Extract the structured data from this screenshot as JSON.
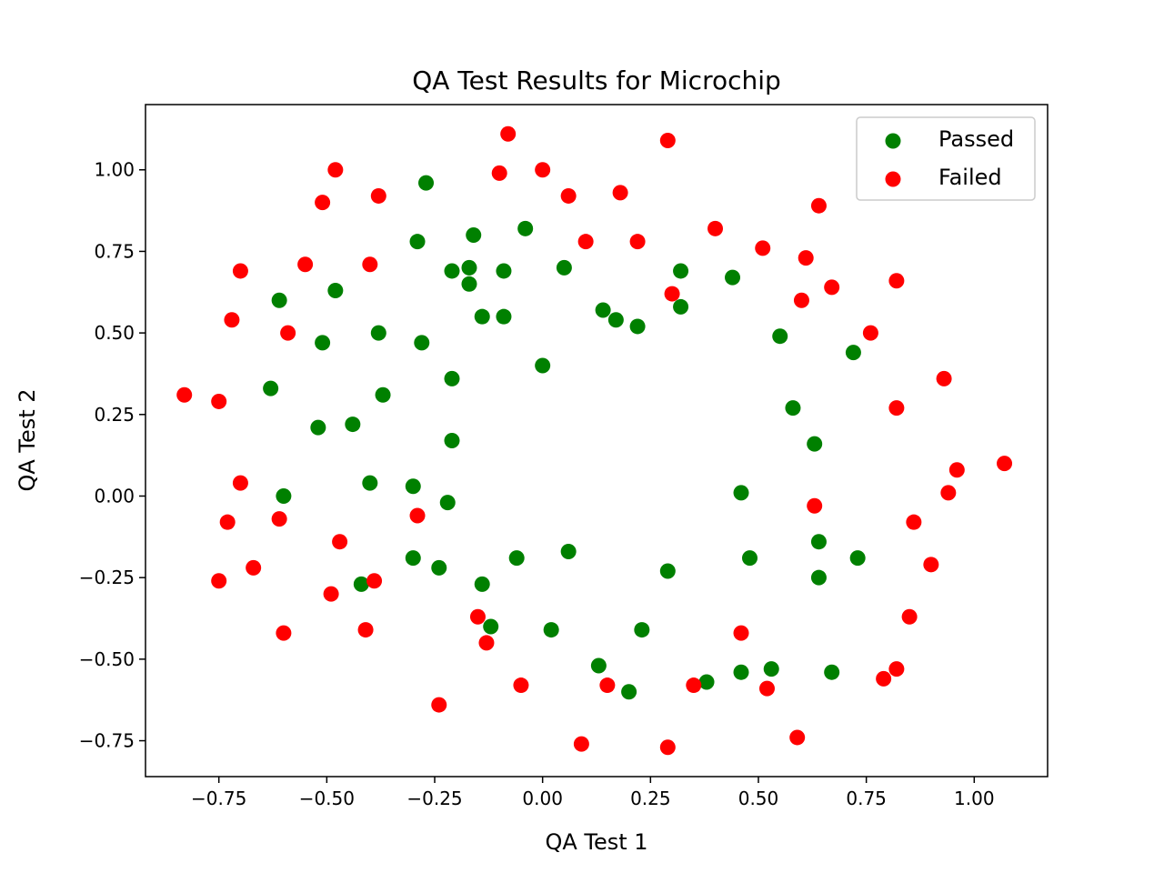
{
  "chart_data": {
    "type": "scatter",
    "title": "QA Test Results for Microchip",
    "xlabel": "QA Test 1",
    "ylabel": "QA Test 2",
    "xlim": [
      -0.92,
      1.17
    ],
    "ylim": [
      -0.86,
      1.2
    ],
    "xticks": [
      -0.75,
      -0.5,
      -0.25,
      0.0,
      0.25,
      0.5,
      0.75,
      1.0
    ],
    "xtick_labels": [
      "−0.75",
      "−0.50",
      "−0.25",
      "0.00",
      "0.25",
      "0.50",
      "0.75",
      "1.00"
    ],
    "yticks": [
      -0.75,
      -0.5,
      -0.25,
      0.0,
      0.25,
      0.5,
      0.75,
      1.0
    ],
    "ytick_labels": [
      "−0.75",
      "−0.50",
      "−0.25",
      "0.00",
      "0.25",
      "0.50",
      "0.75",
      "1.00"
    ],
    "grid": false,
    "legend_position": "top-right",
    "series": [
      {
        "name": "Passed",
        "color": "#008000",
        "points": [
          [
            -0.27,
            0.96
          ],
          [
            -0.04,
            0.82
          ],
          [
            -0.16,
            0.8
          ],
          [
            -0.29,
            0.78
          ],
          [
            -0.21,
            0.69
          ],
          [
            -0.17,
            0.7
          ],
          [
            -0.09,
            0.69
          ],
          [
            0.05,
            0.7
          ],
          [
            -0.17,
            0.65
          ],
          [
            -0.48,
            0.63
          ],
          [
            -0.61,
            0.6
          ],
          [
            -0.14,
            0.55
          ],
          [
            -0.09,
            0.55
          ],
          [
            0.14,
            0.57
          ],
          [
            0.17,
            0.54
          ],
          [
            0.22,
            0.52
          ],
          [
            0.32,
            0.69
          ],
          [
            0.32,
            0.58
          ],
          [
            0.44,
            0.67
          ],
          [
            0.55,
            0.49
          ],
          [
            0.72,
            0.44
          ],
          [
            -0.38,
            0.5
          ],
          [
            -0.51,
            0.47
          ],
          [
            -0.28,
            0.47
          ],
          [
            0.0,
            0.4
          ],
          [
            -0.21,
            0.36
          ],
          [
            -0.63,
            0.33
          ],
          [
            -0.37,
            0.31
          ],
          [
            0.58,
            0.27
          ],
          [
            -0.52,
            0.21
          ],
          [
            -0.44,
            0.22
          ],
          [
            -0.21,
            0.17
          ],
          [
            0.63,
            0.16
          ],
          [
            -0.6,
            0.0
          ],
          [
            -0.4,
            0.04
          ],
          [
            -0.3,
            0.03
          ],
          [
            -0.22,
            -0.02
          ],
          [
            0.46,
            0.01
          ],
          [
            -0.06,
            -0.19
          ],
          [
            0.06,
            -0.17
          ],
          [
            -0.3,
            -0.19
          ],
          [
            -0.24,
            -0.22
          ],
          [
            -0.14,
            -0.27
          ],
          [
            -0.42,
            -0.27
          ],
          [
            0.29,
            -0.23
          ],
          [
            0.48,
            -0.19
          ],
          [
            0.64,
            -0.14
          ],
          [
            0.73,
            -0.19
          ],
          [
            0.64,
            -0.25
          ],
          [
            -0.12,
            -0.4
          ],
          [
            0.02,
            -0.41
          ],
          [
            0.23,
            -0.41
          ],
          [
            0.13,
            -0.52
          ],
          [
            0.2,
            -0.6
          ],
          [
            0.38,
            -0.57
          ],
          [
            0.46,
            -0.54
          ],
          [
            0.53,
            -0.53
          ],
          [
            0.67,
            -0.54
          ]
        ]
      },
      {
        "name": "Failed",
        "color": "#ff0000",
        "points": [
          [
            -0.08,
            1.11
          ],
          [
            0.29,
            1.09
          ],
          [
            -0.48,
            1.0
          ],
          [
            -0.1,
            0.99
          ],
          [
            0.0,
            1.0
          ],
          [
            -0.38,
            0.92
          ],
          [
            -0.51,
            0.9
          ],
          [
            0.06,
            0.92
          ],
          [
            0.18,
            0.93
          ],
          [
            0.64,
            0.89
          ],
          [
            0.4,
            0.82
          ],
          [
            0.1,
            0.78
          ],
          [
            0.22,
            0.78
          ],
          [
            0.51,
            0.76
          ],
          [
            0.61,
            0.73
          ],
          [
            -0.55,
            0.71
          ],
          [
            -0.4,
            0.71
          ],
          [
            -0.7,
            0.69
          ],
          [
            0.82,
            0.66
          ],
          [
            0.67,
            0.64
          ],
          [
            0.3,
            0.62
          ],
          [
            0.6,
            0.6
          ],
          [
            -0.72,
            0.54
          ],
          [
            -0.59,
            0.5
          ],
          [
            0.76,
            0.5
          ],
          [
            0.93,
            0.36
          ],
          [
            -0.83,
            0.31
          ],
          [
            -0.75,
            0.29
          ],
          [
            0.82,
            0.27
          ],
          [
            1.07,
            0.1
          ],
          [
            0.96,
            0.08
          ],
          [
            -0.7,
            0.04
          ],
          [
            0.94,
            0.01
          ],
          [
            0.63,
            -0.03
          ],
          [
            -0.29,
            -0.06
          ],
          [
            -0.61,
            -0.07
          ],
          [
            -0.73,
            -0.08
          ],
          [
            0.86,
            -0.08
          ],
          [
            -0.47,
            -0.14
          ],
          [
            -0.67,
            -0.22
          ],
          [
            0.9,
            -0.21
          ],
          [
            -0.75,
            -0.26
          ],
          [
            -0.39,
            -0.26
          ],
          [
            -0.49,
            -0.3
          ],
          [
            -0.15,
            -0.37
          ],
          [
            0.85,
            -0.37
          ],
          [
            -0.41,
            -0.41
          ],
          [
            -0.6,
            -0.42
          ],
          [
            0.46,
            -0.42
          ],
          [
            -0.13,
            -0.45
          ],
          [
            0.82,
            -0.53
          ],
          [
            0.79,
            -0.56
          ],
          [
            -0.05,
            -0.58
          ],
          [
            0.15,
            -0.58
          ],
          [
            0.35,
            -0.58
          ],
          [
            0.52,
            -0.59
          ],
          [
            -0.24,
            -0.64
          ],
          [
            0.59,
            -0.74
          ],
          [
            0.09,
            -0.76
          ],
          [
            0.29,
            -0.77
          ]
        ]
      }
    ]
  }
}
